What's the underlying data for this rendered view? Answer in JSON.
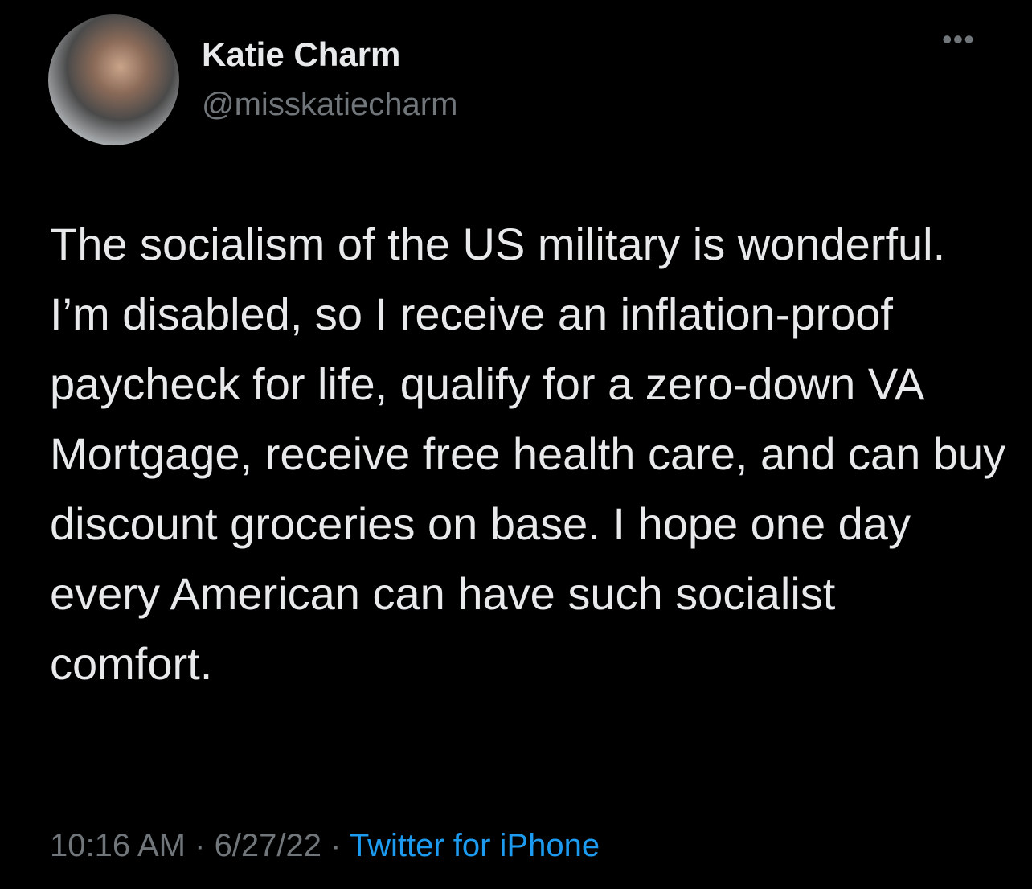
{
  "tweet": {
    "author_name": "Katie Charm",
    "author_handle": "@misskatiecharm",
    "more_icon": "ellipsis-icon",
    "text": "The socialism of the US military is wonderful. I’m disabled, so I receive an inflation-proof paycheck for life, qualify for a zero-down VA Mortgage, receive free health care, and can buy discount groceries on base. I hope one day every American can have such socialist comfort.",
    "time": "10:16 AM",
    "date": "6/27/22",
    "separator": " · ",
    "source": "Twitter for iPhone",
    "link_color": "#1d9bf0"
  }
}
